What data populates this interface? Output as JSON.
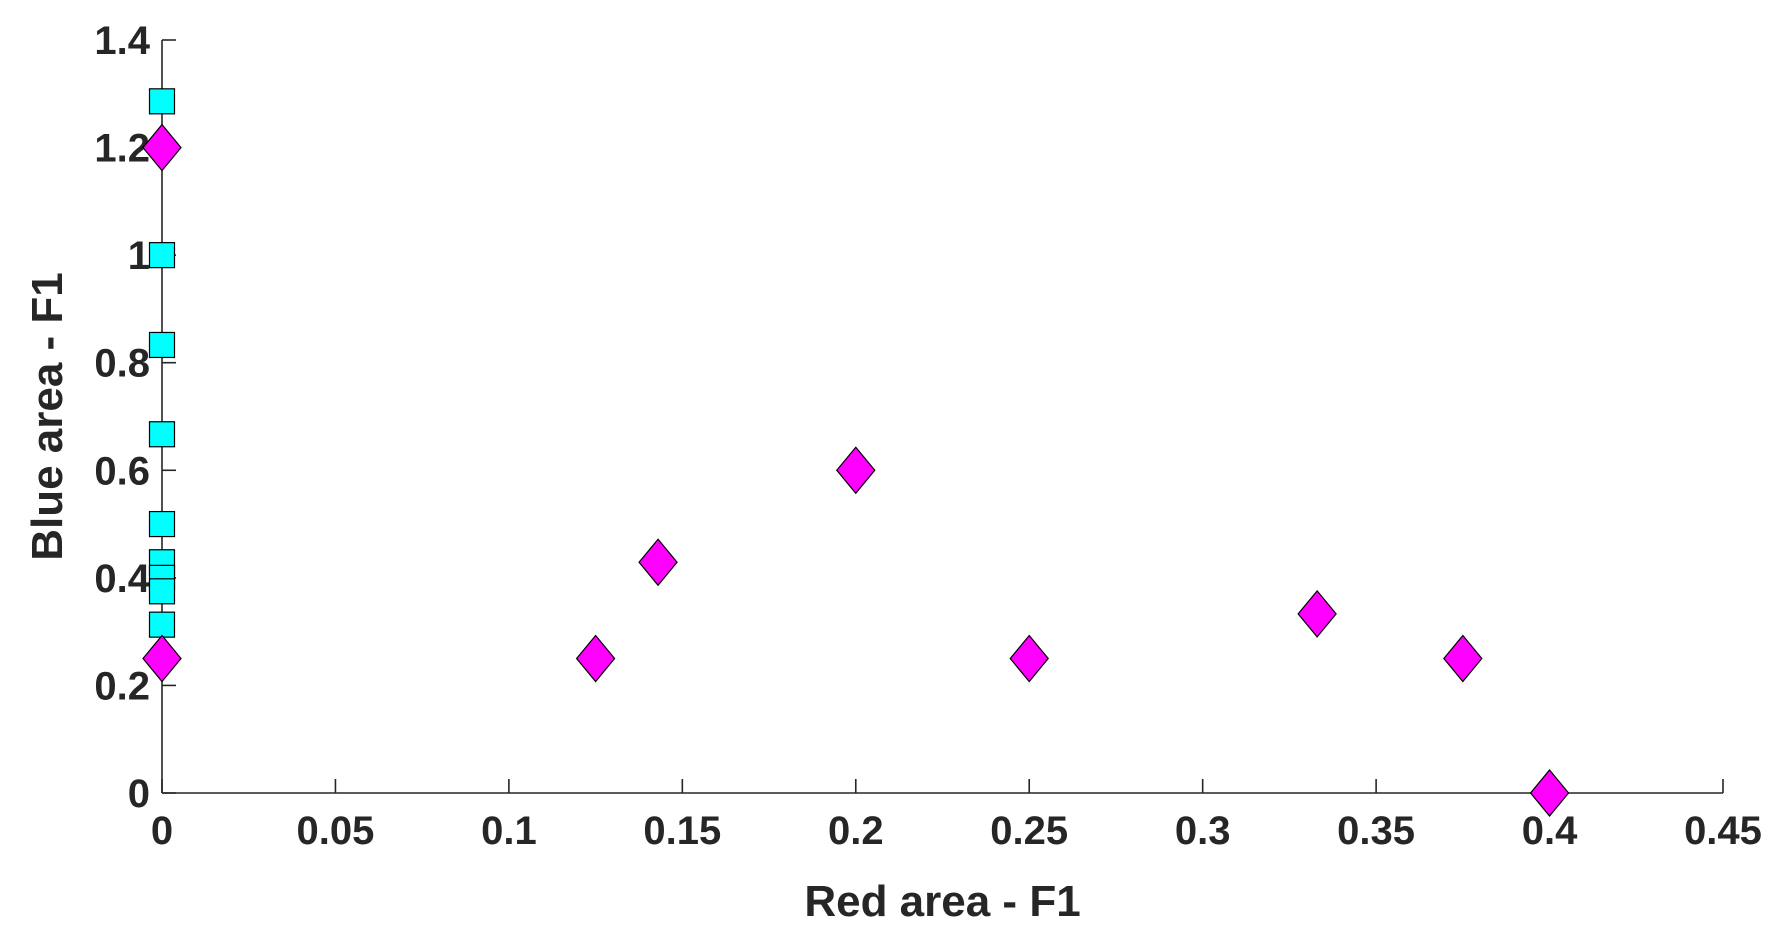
{
  "chart_data": {
    "type": "scatter",
    "title": "",
    "xlabel": "Red area - F1",
    "ylabel": "Blue area - F1",
    "xlim": [
      0,
      0.45
    ],
    "ylim": [
      0,
      1.4
    ],
    "xticks": [
      0,
      0.05,
      0.1,
      0.15,
      0.2,
      0.25,
      0.3,
      0.35,
      0.4,
      0.45
    ],
    "xtick_labels": [
      "0",
      "0.05",
      "0.1",
      "0.15",
      "0.2",
      "0.25",
      "0.3",
      "0.35",
      "0.4",
      "0.45"
    ],
    "yticks": [
      0,
      0.2,
      0.4,
      0.6,
      0.8,
      1,
      1.2,
      1.4
    ],
    "ytick_labels": [
      "0",
      "0.2",
      "0.4",
      "0.6",
      "0.8",
      "1",
      "1.2",
      "1.4"
    ],
    "grid": false,
    "legend": null,
    "series": [
      {
        "name": "square markers",
        "marker": "square",
        "color": "#00FFFF",
        "points": [
          {
            "x": 0,
            "y": 1.286
          },
          {
            "x": 0,
            "y": 1.0
          },
          {
            "x": 0,
            "y": 0.833
          },
          {
            "x": 0,
            "y": 0.667
          },
          {
            "x": 0,
            "y": 0.5
          },
          {
            "x": 0,
            "y": 0.429
          },
          {
            "x": 0,
            "y": 0.4
          },
          {
            "x": 0,
            "y": 0.375
          },
          {
            "x": 0,
            "y": 0.313
          }
        ]
      },
      {
        "name": "diamond markers",
        "marker": "diamond",
        "color": "#FF00FF",
        "points": [
          {
            "x": 0,
            "y": 1.2
          },
          {
            "x": 0,
            "y": 0.25
          },
          {
            "x": 0.125,
            "y": 0.25
          },
          {
            "x": 0.143,
            "y": 0.429
          },
          {
            "x": 0.2,
            "y": 0.6
          },
          {
            "x": 0.25,
            "y": 0.25
          },
          {
            "x": 0.333,
            "y": 0.333
          },
          {
            "x": 0.375,
            "y": 0.25
          },
          {
            "x": 0.4,
            "y": 0.0
          }
        ]
      }
    ]
  }
}
